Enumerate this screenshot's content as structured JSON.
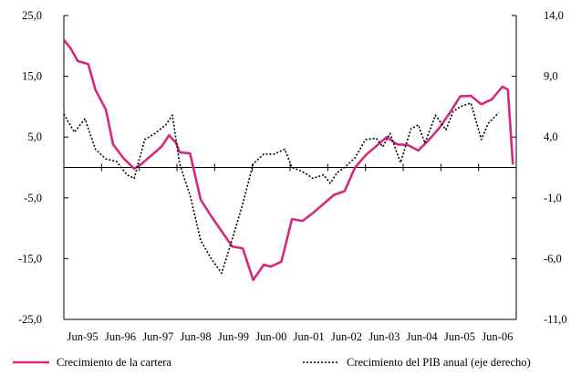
{
  "chart_data": {
    "type": "line",
    "title": "",
    "xlabel": "",
    "ylabel": "",
    "x_tick_labels": [
      "Jun-95",
      "Jun-96",
      "Jun-97",
      "Jun-98",
      "Jun-99",
      "Jun-00",
      "Jun-01",
      "Jun-02",
      "Jun-03",
      "Jun-04",
      "Jun-05",
      "Jun-06"
    ],
    "y_left": {
      "ylim": [
        -25,
        25
      ],
      "ticks": [
        -25,
        -15,
        -5,
        5,
        15,
        25
      ],
      "tick_labels": [
        "-25,0",
        "-15,0",
        "-5,0",
        "5,0",
        "15,0",
        "25,0"
      ]
    },
    "y_right": {
      "ylim": [
        -11,
        14
      ],
      "ticks": [
        -11,
        -6,
        -1,
        4,
        9,
        14
      ],
      "tick_labels": [
        "-11,0",
        "-6,0",
        "-1,0",
        "4,0",
        "9,0",
        "14,0"
      ]
    },
    "zero_line": 0,
    "grid": false,
    "legend_position": "bottom",
    "series": [
      {
        "name": "Crecimiento de la cartera",
        "axis": "left",
        "color": "#d6287f",
        "style": "solid",
        "points": [
          [
            1995.5,
            21.0
          ],
          [
            1995.67,
            19.5
          ],
          [
            1995.83,
            17.5
          ],
          [
            1996.08,
            17.0
          ],
          [
            1996.25,
            12.8
          ],
          [
            1996.5,
            9.5
          ],
          [
            1996.67,
            3.8
          ],
          [
            1996.92,
            1.5
          ],
          [
            1997.17,
            -0.2
          ],
          [
            1997.33,
            0.5
          ],
          [
            1997.67,
            2.5
          ],
          [
            1997.83,
            3.5
          ],
          [
            1998.0,
            5.3
          ],
          [
            1998.17,
            4.0
          ],
          [
            1998.25,
            2.5
          ],
          [
            1998.5,
            2.3
          ],
          [
            1998.75,
            -5.3
          ],
          [
            1999.0,
            -8.0
          ],
          [
            1999.25,
            -10.5
          ],
          [
            1999.5,
            -13.0
          ],
          [
            1999.75,
            -13.3
          ],
          [
            2000.0,
            -18.5
          ],
          [
            2000.25,
            -16.0
          ],
          [
            2000.42,
            -16.3
          ],
          [
            2000.67,
            -15.5
          ],
          [
            2000.92,
            -8.5
          ],
          [
            2001.17,
            -8.8
          ],
          [
            2001.42,
            -7.5
          ],
          [
            2001.67,
            -6.0
          ],
          [
            2001.92,
            -4.5
          ],
          [
            2002.17,
            -3.9
          ],
          [
            2002.42,
            0.0
          ],
          [
            2002.67,
            2.0
          ],
          [
            2002.92,
            3.5
          ],
          [
            2003.17,
            5.0
          ],
          [
            2003.42,
            3.8
          ],
          [
            2003.67,
            3.7
          ],
          [
            2003.92,
            2.8
          ],
          [
            2004.17,
            4.5
          ],
          [
            2004.42,
            6.5
          ],
          [
            2004.67,
            9.0
          ],
          [
            2004.92,
            11.7
          ],
          [
            2005.17,
            11.8
          ],
          [
            2005.42,
            10.4
          ],
          [
            2005.67,
            11.2
          ],
          [
            2005.92,
            13.3
          ],
          [
            2006.05,
            12.8
          ],
          [
            2006.17,
            0.5
          ]
        ]
      },
      {
        "name": "Crecimiento del PIB anual (eje derecho)",
        "axis": "right",
        "color": "#000000",
        "style": "dotted",
        "points": [
          [
            1995.5,
            5.9
          ],
          [
            1995.75,
            4.4
          ],
          [
            1996.0,
            5.5
          ],
          [
            1996.25,
            3.0
          ],
          [
            1996.5,
            2.2
          ],
          [
            1996.75,
            2.0
          ],
          [
            1997.0,
            0.9
          ],
          [
            1997.17,
            0.6
          ],
          [
            1997.42,
            3.8
          ],
          [
            1997.67,
            4.3
          ],
          [
            1997.92,
            5.0
          ],
          [
            1998.08,
            5.8
          ],
          [
            1998.25,
            1.8
          ],
          [
            1998.5,
            -0.8
          ],
          [
            1998.75,
            -4.5
          ],
          [
            1999.0,
            -6.0
          ],
          [
            1999.25,
            -7.2
          ],
          [
            1999.5,
            -4.4
          ],
          [
            1999.75,
            -1.5
          ],
          [
            2000.0,
            1.8
          ],
          [
            2000.25,
            2.6
          ],
          [
            2000.5,
            2.6
          ],
          [
            2000.75,
            3.0
          ],
          [
            2000.92,
            1.5
          ],
          [
            2001.08,
            1.3
          ],
          [
            2001.25,
            1.0
          ],
          [
            2001.42,
            0.6
          ],
          [
            2001.67,
            0.9
          ],
          [
            2001.83,
            0.2
          ],
          [
            2002.0,
            1.1
          ],
          [
            2002.17,
            1.5
          ],
          [
            2002.42,
            2.3
          ],
          [
            2002.67,
            3.8
          ],
          [
            2002.92,
            3.9
          ],
          [
            2003.08,
            3.2
          ],
          [
            2003.25,
            4.3
          ],
          [
            2003.5,
            1.9
          ],
          [
            2003.75,
            4.7
          ],
          [
            2003.92,
            5.0
          ],
          [
            2004.08,
            3.5
          ],
          [
            2004.33,
            5.8
          ],
          [
            2004.58,
            4.6
          ],
          [
            2004.75,
            6.1
          ],
          [
            2004.92,
            6.5
          ],
          [
            2005.17,
            6.8
          ],
          [
            2005.42,
            3.8
          ],
          [
            2005.58,
            5.1
          ],
          [
            2005.83,
            6.0
          ]
        ]
      }
    ]
  }
}
